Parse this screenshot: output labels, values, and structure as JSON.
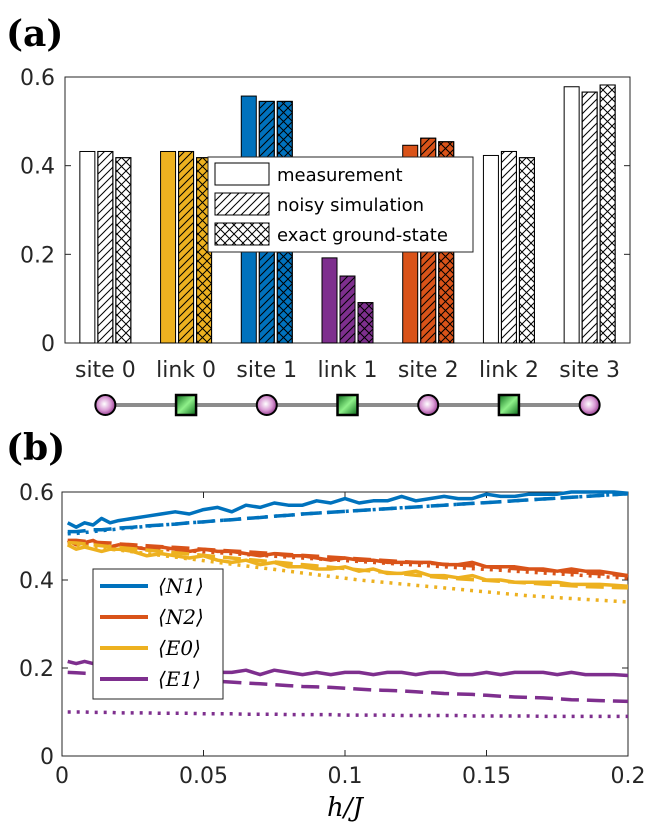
{
  "chart_data": [
    {
      "type": "bar",
      "panel_label": "(a)",
      "categories": [
        "site 0",
        "link 0",
        "site 1",
        "link 1",
        "site 2",
        "link 2",
        "site 3"
      ],
      "category_colors": [
        "#ffffff",
        "#EDB120",
        "#0072BD",
        "#7E2F8E",
        "#D95319",
        "#ffffff",
        "#ffffff"
      ],
      "series": [
        {
          "name": "measurement",
          "pattern": "none",
          "values": [
            0.432,
            0.432,
            0.557,
            0.192,
            0.446,
            0.423,
            0.578
          ]
        },
        {
          "name": "noisy simulation",
          "pattern": "diagonal",
          "values": [
            0.432,
            0.432,
            0.545,
            0.151,
            0.462,
            0.432,
            0.566
          ]
        },
        {
          "name": "exact ground-state",
          "pattern": "crosshatch",
          "values": [
            0.418,
            0.418,
            0.545,
            0.091,
            0.454,
            0.418,
            0.582
          ]
        }
      ],
      "ylim": [
        0,
        0.6
      ],
      "yticks": [
        "0",
        "0.2",
        "0.4",
        "0.6"
      ],
      "legend_position": "center",
      "lattice": [
        "site",
        "link",
        "site",
        "link",
        "site",
        "link",
        "site"
      ]
    },
    {
      "type": "line",
      "panel_label": "(b)",
      "xlabel": "h/J",
      "xlim": [
        0,
        0.2
      ],
      "ylim": [
        0,
        0.6
      ],
      "xticks": [
        "0",
        "0.05",
        "0.1",
        "0.15",
        "0.2"
      ],
      "yticks": [
        "0",
        "0.2",
        "0.4",
        "0.6"
      ],
      "x": [
        0.002,
        0.005,
        0.008,
        0.011,
        0.014,
        0.017,
        0.02,
        0.025,
        0.03,
        0.035,
        0.04,
        0.045,
        0.05,
        0.055,
        0.06,
        0.065,
        0.07,
        0.075,
        0.08,
        0.085,
        0.09,
        0.095,
        0.1,
        0.105,
        0.11,
        0.115,
        0.12,
        0.125,
        0.13,
        0.135,
        0.14,
        0.145,
        0.15,
        0.155,
        0.16,
        0.165,
        0.17,
        0.175,
        0.18,
        0.185,
        0.19,
        0.195,
        0.2
      ],
      "series": [
        {
          "name": "⟨N1⟩",
          "color": "#0072BD",
          "measurement": [
            0.53,
            0.52,
            0.53,
            0.525,
            0.54,
            0.53,
            0.535,
            0.54,
            0.545,
            0.55,
            0.555,
            0.55,
            0.56,
            0.565,
            0.555,
            0.57,
            0.565,
            0.575,
            0.57,
            0.57,
            0.58,
            0.575,
            0.585,
            0.575,
            0.58,
            0.58,
            0.59,
            0.58,
            0.585,
            0.59,
            0.585,
            0.585,
            0.595,
            0.59,
            0.59,
            0.595,
            0.595,
            0.595,
            0.6,
            0.6,
            0.6,
            0.6,
            0.597
          ],
          "noisy": [
            0.51,
            0.51,
            0.512,
            0.514,
            0.514,
            0.516,
            0.518,
            0.52,
            0.523,
            0.525,
            0.527,
            0.53,
            0.532,
            0.535,
            0.537,
            0.54,
            0.542,
            0.545,
            0.547,
            0.55,
            0.552,
            0.554,
            0.556,
            0.558,
            0.56,
            0.562,
            0.564,
            0.566,
            0.568,
            0.57,
            0.572,
            0.574,
            0.576,
            0.578,
            0.58,
            0.582,
            0.584,
            0.586,
            0.588,
            0.59,
            0.592,
            0.594,
            0.596
          ],
          "exact": [
            0.505,
            0.506,
            0.508,
            0.51,
            0.512,
            0.514,
            0.516,
            0.519,
            0.522,
            0.525,
            0.527,
            0.53,
            0.532,
            0.535,
            0.537,
            0.54,
            0.542,
            0.545,
            0.547,
            0.55,
            0.552,
            0.554,
            0.556,
            0.558,
            0.56,
            0.562,
            0.564,
            0.566,
            0.568,
            0.57,
            0.572,
            0.574,
            0.576,
            0.578,
            0.58,
            0.582,
            0.584,
            0.586,
            0.588,
            0.59,
            0.592,
            0.594,
            0.596
          ]
        },
        {
          "name": "⟨N2⟩",
          "color": "#D95319",
          "measurement": [
            0.49,
            0.48,
            0.485,
            0.49,
            0.48,
            0.475,
            0.48,
            0.475,
            0.47,
            0.475,
            0.47,
            0.465,
            0.47,
            0.465,
            0.465,
            0.46,
            0.455,
            0.46,
            0.455,
            0.455,
            0.45,
            0.445,
            0.45,
            0.445,
            0.445,
            0.44,
            0.44,
            0.44,
            0.44,
            0.435,
            0.435,
            0.44,
            0.43,
            0.43,
            0.43,
            0.425,
            0.425,
            0.42,
            0.425,
            0.42,
            0.42,
            0.415,
            0.41
          ],
          "noisy": [
            0.49,
            0.49,
            0.488,
            0.486,
            0.485,
            0.484,
            0.482,
            0.48,
            0.478,
            0.476,
            0.474,
            0.472,
            0.47,
            0.468,
            0.466,
            0.464,
            0.462,
            0.46,
            0.458,
            0.456,
            0.454,
            0.452,
            0.45,
            0.448,
            0.446,
            0.444,
            0.442,
            0.44,
            0.438,
            0.436,
            0.434,
            0.432,
            0.43,
            0.428,
            0.426,
            0.424,
            0.422,
            0.42,
            0.418,
            0.416,
            0.414,
            0.412,
            0.41
          ],
          "exact": [
            0.485,
            0.484,
            0.482,
            0.481,
            0.48,
            0.478,
            0.476,
            0.474,
            0.472,
            0.47,
            0.468,
            0.466,
            0.464,
            0.462,
            0.46,
            0.458,
            0.456,
            0.454,
            0.452,
            0.45,
            0.448,
            0.446,
            0.444,
            0.442,
            0.44,
            0.438,
            0.436,
            0.434,
            0.432,
            0.43,
            0.428,
            0.426,
            0.424,
            0.422,
            0.42,
            0.418,
            0.416,
            0.414,
            0.412,
            0.41,
            0.408,
            0.406,
            0.404
          ]
        },
        {
          "name": "⟨E0⟩",
          "color": "#EDB120",
          "measurement": [
            0.48,
            0.47,
            0.475,
            0.47,
            0.465,
            0.47,
            0.47,
            0.465,
            0.455,
            0.46,
            0.455,
            0.45,
            0.455,
            0.445,
            0.44,
            0.445,
            0.435,
            0.44,
            0.43,
            0.43,
            0.425,
            0.425,
            0.43,
            0.42,
            0.425,
            0.415,
            0.415,
            0.42,
            0.41,
            0.41,
            0.405,
            0.41,
            0.4,
            0.4,
            0.395,
            0.395,
            0.395,
            0.395,
            0.39,
            0.39,
            0.39,
            0.388,
            0.386
          ],
          "noisy": [
            0.485,
            0.484,
            0.482,
            0.48,
            0.478,
            0.476,
            0.474,
            0.471,
            0.468,
            0.465,
            0.462,
            0.459,
            0.456,
            0.453,
            0.45,
            0.447,
            0.444,
            0.441,
            0.438,
            0.435,
            0.432,
            0.429,
            0.426,
            0.423,
            0.42,
            0.417,
            0.414,
            0.411,
            0.408,
            0.405,
            0.403,
            0.401,
            0.399,
            0.397,
            0.395,
            0.393,
            0.391,
            0.389,
            0.387,
            0.385,
            0.384,
            0.383,
            0.382
          ],
          "exact": [
            0.48,
            0.479,
            0.477,
            0.475,
            0.473,
            0.47,
            0.468,
            0.464,
            0.46,
            0.456,
            0.452,
            0.448,
            0.444,
            0.44,
            0.436,
            0.432,
            0.428,
            0.424,
            0.42,
            0.416,
            0.412,
            0.408,
            0.404,
            0.4,
            0.397,
            0.394,
            0.391,
            0.388,
            0.385,
            0.382,
            0.379,
            0.376,
            0.373,
            0.37,
            0.367,
            0.364,
            0.362,
            0.36,
            0.358,
            0.356,
            0.354,
            0.352,
            0.35
          ]
        },
        {
          "name": "⟨E1⟩",
          "color": "#7E2F8E",
          "measurement": [
            0.215,
            0.21,
            0.215,
            0.21,
            0.205,
            0.21,
            0.21,
            0.205,
            0.2,
            0.2,
            0.2,
            0.195,
            0.2,
            0.19,
            0.19,
            0.195,
            0.185,
            0.195,
            0.19,
            0.185,
            0.19,
            0.185,
            0.19,
            0.19,
            0.185,
            0.19,
            0.19,
            0.185,
            0.19,
            0.19,
            0.185,
            0.185,
            0.19,
            0.185,
            0.19,
            0.19,
            0.19,
            0.185,
            0.19,
            0.185,
            0.185,
            0.185,
            0.183
          ],
          "noisy": [
            0.19,
            0.189,
            0.188,
            0.187,
            0.186,
            0.185,
            0.184,
            0.182,
            0.18,
            0.178,
            0.176,
            0.174,
            0.172,
            0.17,
            0.168,
            0.166,
            0.164,
            0.162,
            0.16,
            0.158,
            0.157,
            0.156,
            0.154,
            0.152,
            0.15,
            0.149,
            0.148,
            0.146,
            0.144,
            0.142,
            0.141,
            0.14,
            0.138,
            0.136,
            0.134,
            0.133,
            0.132,
            0.13,
            0.128,
            0.127,
            0.126,
            0.125,
            0.124
          ],
          "exact": [
            0.1,
            0.1,
            0.1,
            0.099,
            0.099,
            0.099,
            0.098,
            0.098,
            0.098,
            0.097,
            0.097,
            0.097,
            0.096,
            0.096,
            0.096,
            0.095,
            0.095,
            0.095,
            0.094,
            0.094,
            0.094,
            0.094,
            0.093,
            0.093,
            0.093,
            0.093,
            0.092,
            0.092,
            0.092,
            0.092,
            0.092,
            0.091,
            0.091,
            0.091,
            0.091,
            0.091,
            0.09,
            0.09,
            0.09,
            0.09,
            0.09,
            0.09,
            0.09
          ]
        }
      ],
      "legend_position": "left"
    }
  ]
}
